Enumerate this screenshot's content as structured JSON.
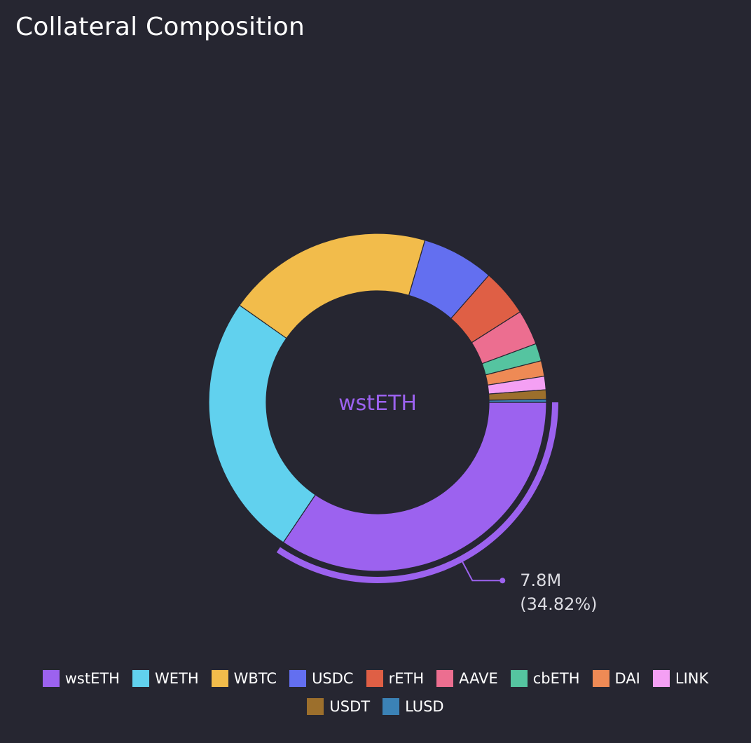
{
  "page": {
    "title": "Collateral Composition",
    "background": "#262631"
  },
  "chart_data": {
    "type": "pie",
    "title": "Collateral Composition",
    "donut": true,
    "center_label": "wstETH",
    "highlighted": "wstETH",
    "tooltip": {
      "value": "7.8M",
      "percent": "(34.82%)"
    },
    "legend_position": "bottom",
    "series": [
      {
        "name": "wstETH",
        "percent": 34.82,
        "color": "#9c62ef"
      },
      {
        "name": "WETH",
        "percent": 25.6,
        "color": "#61d1ee"
      },
      {
        "name": "WBTC",
        "percent": 20.0,
        "color": "#f2bc4b"
      },
      {
        "name": "USDC",
        "percent": 7.0,
        "color": "#636ff0"
      },
      {
        "name": "rETH",
        "percent": 4.6,
        "color": "#df5f45"
      },
      {
        "name": "AAVE",
        "percent": 3.4,
        "color": "#ec6e90"
      },
      {
        "name": "cbETH",
        "percent": 1.7,
        "color": "#55c4a0"
      },
      {
        "name": "DAI",
        "percent": 1.5,
        "color": "#ee8a55"
      },
      {
        "name": "LINK",
        "percent": 1.3,
        "color": "#f4a0f4"
      },
      {
        "name": "USDT",
        "percent": 0.9,
        "color": "#9c6f2c"
      },
      {
        "name": "LUSD",
        "percent": 0.3,
        "color": "#3b82b6"
      }
    ]
  }
}
